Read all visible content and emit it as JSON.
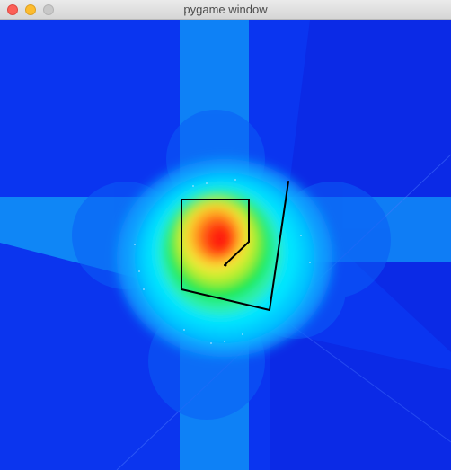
{
  "window": {
    "title": "pygame window"
  },
  "traffic_lights": {
    "close": "close-button",
    "minimize": "minimize-button",
    "zoom": "zoom-button"
  },
  "colors": {
    "background_blue": "#0a35f0",
    "deep_blue": "#0b2ae6",
    "band_blue": "#0f86f6",
    "cyan": "#00e5ff",
    "green": "#1ce94a",
    "yellow": "#f6e83a",
    "orange": "#ff7a1a",
    "red": "#ff1a0a",
    "wall": "#000000"
  }
}
